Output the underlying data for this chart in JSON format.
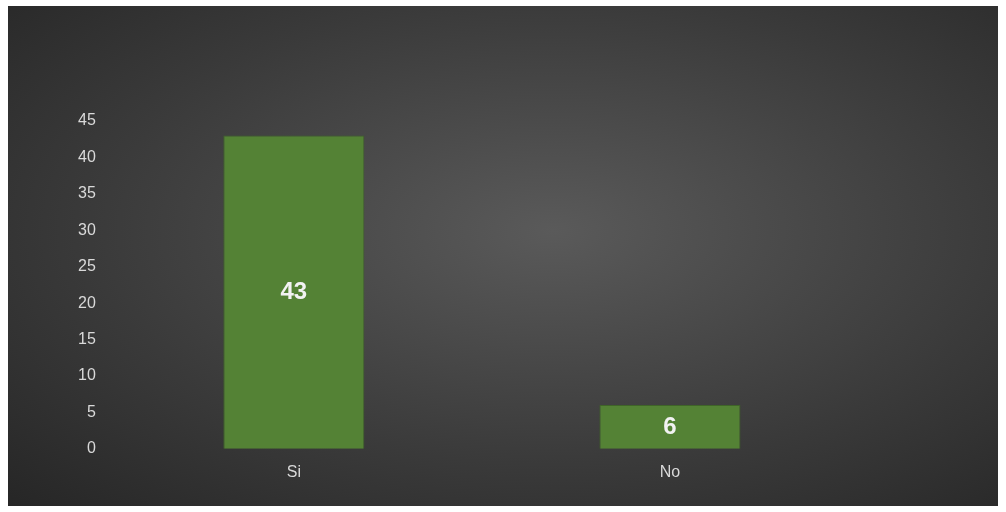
{
  "chart_data": {
    "type": "bar",
    "categories": [
      "Si",
      "No"
    ],
    "values": [
      43,
      6
    ],
    "color": "#548235",
    "ylim": [
      0,
      45
    ],
    "yticks": [
      0,
      5,
      10,
      15,
      20,
      25,
      30,
      35,
      40,
      45
    ],
    "grid": false,
    "data_labels": true
  }
}
